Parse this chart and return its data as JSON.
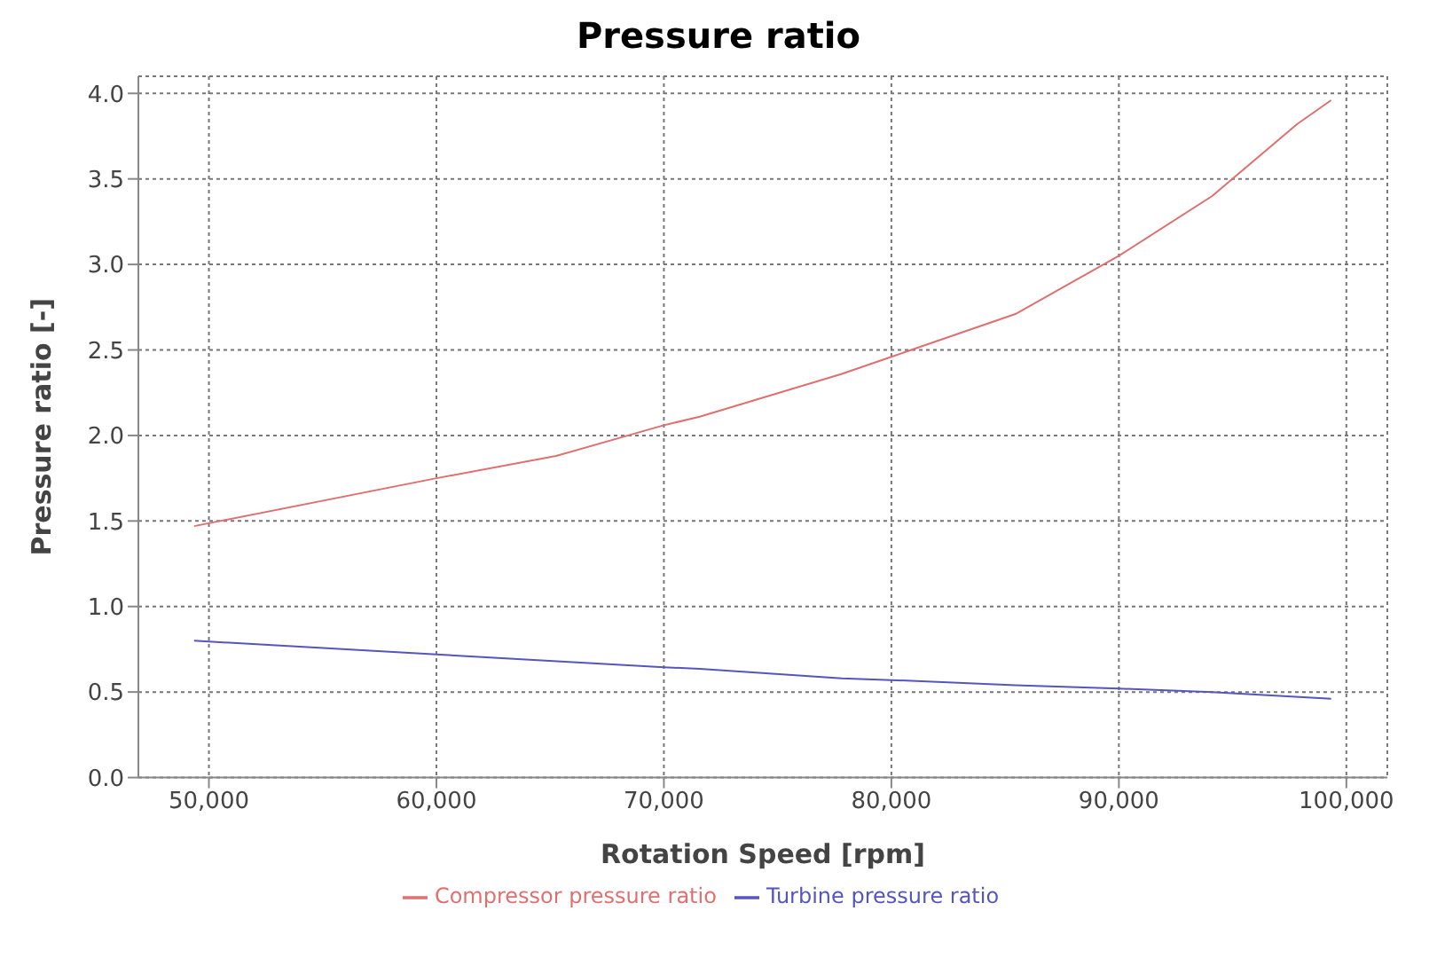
{
  "chart_data": {
    "type": "line",
    "title": "Pressure ratio",
    "xlabel": "Rotation Speed [rpm]",
    "ylabel": "Pressure ratio [-]",
    "xlim": [
      46900,
      101800
    ],
    "ylim": [
      0,
      4.1
    ],
    "xticks": [
      {
        "value": 50000,
        "label": "50,000"
      },
      {
        "value": 60000,
        "label": "60,000"
      },
      {
        "value": 70000,
        "label": "70,000"
      },
      {
        "value": 80000,
        "label": "80,000"
      },
      {
        "value": 90000,
        "label": "90,000"
      },
      {
        "value": 100000,
        "label": "100,000"
      }
    ],
    "yticks": [
      {
        "value": 0,
        "label": "0.0"
      },
      {
        "value": 0.5,
        "label": "0.5"
      },
      {
        "value": 1,
        "label": "1.0"
      },
      {
        "value": 1.5,
        "label": "1.5"
      },
      {
        "value": 2,
        "label": "2.0"
      },
      {
        "value": 2.5,
        "label": "2.5"
      },
      {
        "value": 3,
        "label": "3.0"
      },
      {
        "value": 3.5,
        "label": "3.5"
      },
      {
        "value": 4,
        "label": "4.0"
      }
    ],
    "grid": true,
    "legend": "bottom",
    "marker": "none",
    "line_style": "solid",
    "series": [
      {
        "name": "Compressor pressure ratio",
        "color": "#e07070",
        "x": [
          49350,
          60000,
          65260,
          70000,
          71575,
          77825,
          80000,
          85450,
          90000,
          94100,
          97830,
          99330
        ],
        "values": [
          1.47,
          1.75,
          1.88,
          2.06,
          2.11,
          2.36,
          2.46,
          2.71,
          3.05,
          3.4,
          3.82,
          3.96
        ]
      },
      {
        "name": "Turbine pressure ratio",
        "color": "#5555c0",
        "x": [
          49350,
          60000,
          70000,
          71575,
          77825,
          80000,
          85450,
          90000,
          94100,
          99330
        ],
        "values": [
          0.8,
          0.72,
          0.645,
          0.635,
          0.58,
          0.57,
          0.54,
          0.52,
          0.5,
          0.46
        ]
      }
    ]
  }
}
